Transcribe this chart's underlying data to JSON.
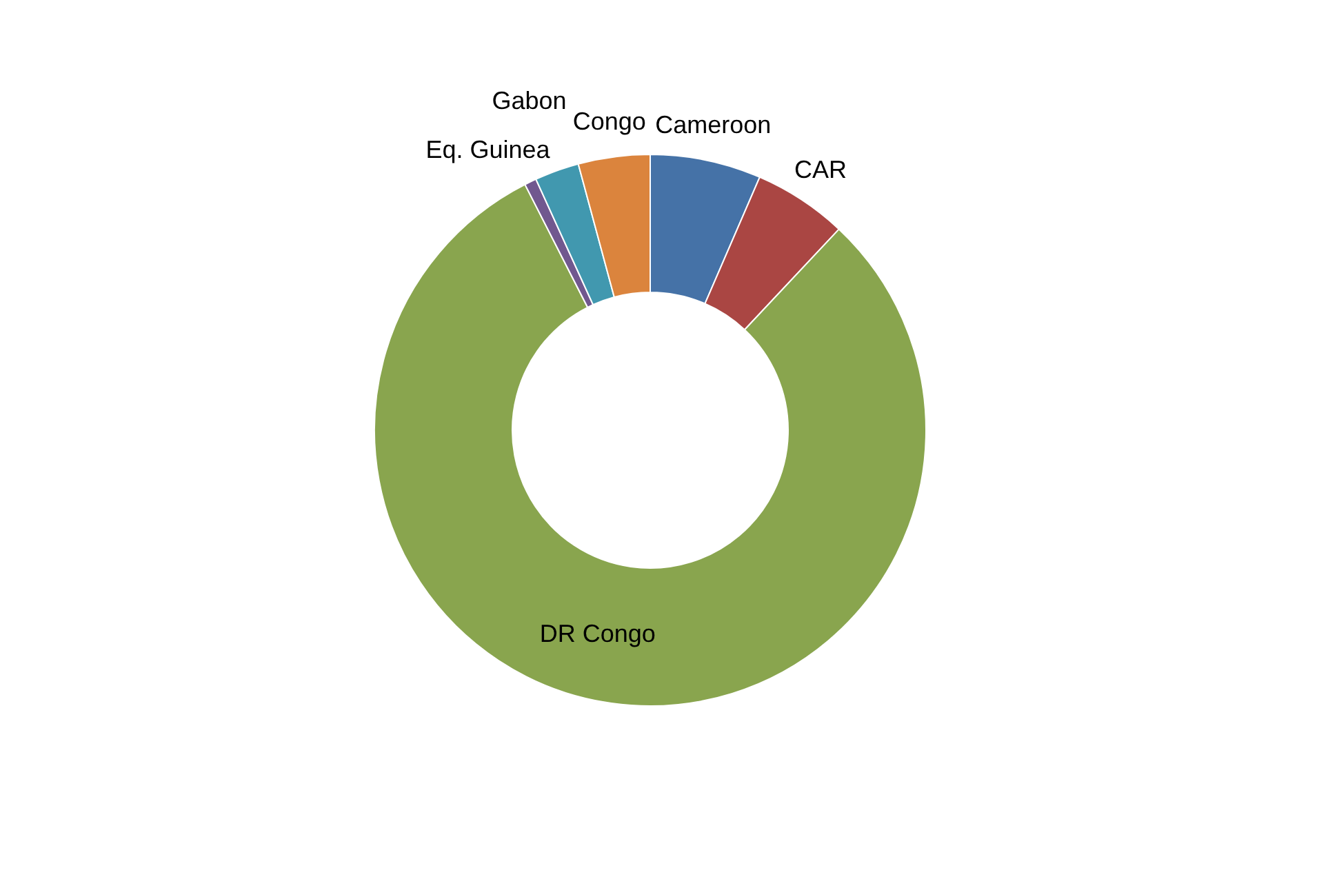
{
  "chart_data": {
    "type": "donut",
    "categories": [
      "Cameroon",
      "CAR",
      "DR Congo",
      "Eq. Guinea",
      "Gabon",
      "Congo"
    ],
    "values": [
      6.5,
      5.5,
      80.5,
      0.7,
      2.6,
      4.2
    ],
    "colors": [
      "#4572a7",
      "#aa4643",
      "#89a54e",
      "#71588f",
      "#4198af",
      "#db843d"
    ],
    "legend": false
  }
}
